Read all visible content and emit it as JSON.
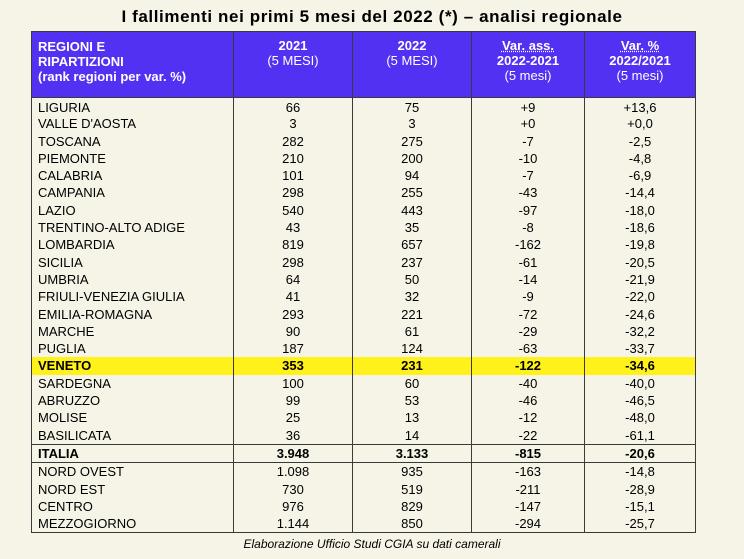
{
  "title": "I fallimenti nei primi 5 mesi del 2022 (*) – analisi regionale",
  "header": {
    "col0": [
      "REGIONI E",
      "RIPARTIZIONI",
      "(rank regioni per var. %)"
    ],
    "col1": [
      "2021",
      "(5 MESI)"
    ],
    "col2": [
      "2022",
      "(5 MESI)"
    ],
    "col3": [
      "Var. ass.",
      "2022-2021",
      "(5 mesi)"
    ],
    "col4": [
      "Var. %",
      "2022/2021",
      "(5 mesi)"
    ]
  },
  "regions": [
    [
      "LIGURIA",
      "66",
      "75",
      "+9",
      "+13,6"
    ],
    [
      "VALLE D'AOSTA",
      "3",
      "3",
      "+0",
      "+0,0"
    ],
    [
      "TOSCANA",
      "282",
      "275",
      "-7",
      "-2,5"
    ],
    [
      "PIEMONTE",
      "210",
      "200",
      "-10",
      "-4,8"
    ],
    [
      "CALABRIA",
      "101",
      "94",
      "-7",
      "-6,9"
    ],
    [
      "CAMPANIA",
      "298",
      "255",
      "-43",
      "-14,4"
    ],
    [
      "LAZIO",
      "540",
      "443",
      "-97",
      "-18,0"
    ],
    [
      "TRENTINO-ALTO ADIGE",
      "43",
      "35",
      "-8",
      "-18,6"
    ],
    [
      "LOMBARDIA",
      "819",
      "657",
      "-162",
      "-19,8"
    ],
    [
      "SICILIA",
      "298",
      "237",
      "-61",
      "-20,5"
    ],
    [
      "UMBRIA",
      "64",
      "50",
      "-14",
      "-21,9"
    ],
    [
      "FRIULI-VENEZIA GIULIA",
      "41",
      "32",
      "-9",
      "-22,0"
    ],
    [
      "EMILIA-ROMAGNA",
      "293",
      "221",
      "-72",
      "-24,6"
    ],
    [
      "MARCHE",
      "90",
      "61",
      "-29",
      "-32,2"
    ],
    [
      "PUGLIA",
      "187",
      "124",
      "-63",
      "-33,7"
    ],
    [
      "VENETO",
      "353",
      "231",
      "-122",
      "-34,6"
    ],
    [
      "SARDEGNA",
      "100",
      "60",
      "-40",
      "-40,0"
    ],
    [
      "ABRUZZO",
      "99",
      "53",
      "-46",
      "-46,5"
    ],
    [
      "MOLISE",
      "25",
      "13",
      "-12",
      "-48,0"
    ],
    [
      "BASILICATA",
      "36",
      "14",
      "-22",
      "-61,1"
    ]
  ],
  "highlight": "VENETO",
  "total": [
    "ITALIA",
    "3.948",
    "3.133",
    "-815",
    "-20,6"
  ],
  "areas": [
    [
      "NORD OVEST",
      "1.098",
      "935",
      "-163",
      "-14,8"
    ],
    [
      "NORD EST",
      "730",
      "519",
      "-211",
      "-28,9"
    ],
    [
      "CENTRO",
      "976",
      "829",
      "-147",
      "-15,1"
    ],
    [
      "MEZZOGIORNO",
      "1.144",
      "850",
      "-294",
      "-25,7"
    ]
  ],
  "footer": "Elaborazione Ufficio Studi CGIA su dati camerali"
}
